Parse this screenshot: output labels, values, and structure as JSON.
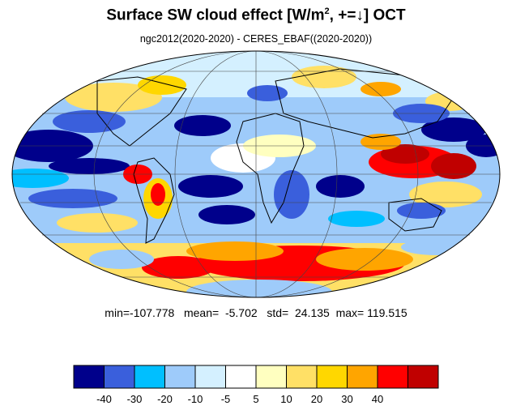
{
  "title": {
    "main": "Surface SW cloud effect [W/m",
    "sup": "2",
    "tail": ", +=↓]  OCT"
  },
  "subtitle": "ngc2012(2020-2020) - CERES_EBAF((2020-2020))",
  "stats": {
    "min_label": "min=",
    "min": "-107.778",
    "mean_label": "mean=",
    "mean": "-5.702",
    "std_label": "std=",
    "std": "24.135",
    "max_label": "max=",
    "max": "119.515"
  },
  "colorbar": {
    "colors": [
      "#00008b",
      "#3a5fdc",
      "#00bfff",
      "#9ecbfa",
      "#d4f0ff",
      "#ffffff",
      "#ffffc0",
      "#ffe066",
      "#ffd700",
      "#ffa500",
      "#ff0000",
      "#c00000"
    ],
    "labels": [
      "-40",
      "-30",
      "-20",
      "-10",
      "-5",
      "5",
      "10",
      "20",
      "30",
      "40"
    ]
  },
  "map": {
    "projection": "mollweide",
    "field": "Surface SW cloud effect",
    "month": "OCT"
  }
}
